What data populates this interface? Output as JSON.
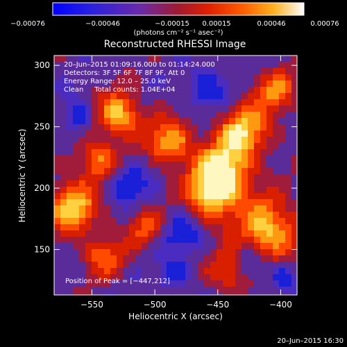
{
  "chart_data": {
    "type": "heatmap",
    "title": "Reconstructed RHESSI Image",
    "xlabel": "Heliocentric X (arcsec)",
    "ylabel": "Heliocentric Y (arcsec)",
    "xlim": [
      -580,
      -387
    ],
    "ylim": [
      113,
      308
    ],
    "x_ticks": [
      {
        "value": -550,
        "label": "−550"
      },
      {
        "value": -500,
        "label": "−500"
      },
      {
        "value": -450,
        "label": "−450"
      },
      {
        "value": -400,
        "label": "−400"
      }
    ],
    "y_ticks": [
      {
        "value": 150,
        "label": "150"
      },
      {
        "value": 200,
        "label": "200"
      },
      {
        "value": 250,
        "label": "250"
      },
      {
        "value": 300,
        "label": "300"
      }
    ],
    "colorbar": {
      "range": [
        -0.00076,
        0.00076
      ],
      "tick_labels": [
        "−0.00076",
        "−0.00046",
        "−0.00015",
        "0.00015",
        "0.00046",
        "0.00076"
      ],
      "unit_label": "(photons cm⁻² s⁻¹ asec⁻²)",
      "colors": [
        "#0000ff",
        "#5a2cc8",
        "#9a1e3a",
        "#ff3a00",
        "#ffa500",
        "#ffffff"
      ]
    },
    "annotations": [
      "20–Jun–2015 01:09:16.000 to 01:14:24.000",
      "Detectors: 3F 5F 6F 7F 8F 9F, Att 0",
      "Energy Range: 12.0 – 25.0 keV",
      "Clean     Total counts: 1.04E+04"
    ],
    "peak_label": "Position of Peak = [−447,212]",
    "peak": [
      -447,
      212
    ]
  },
  "footer_timestamp": "20–Jun–2015 16:30"
}
